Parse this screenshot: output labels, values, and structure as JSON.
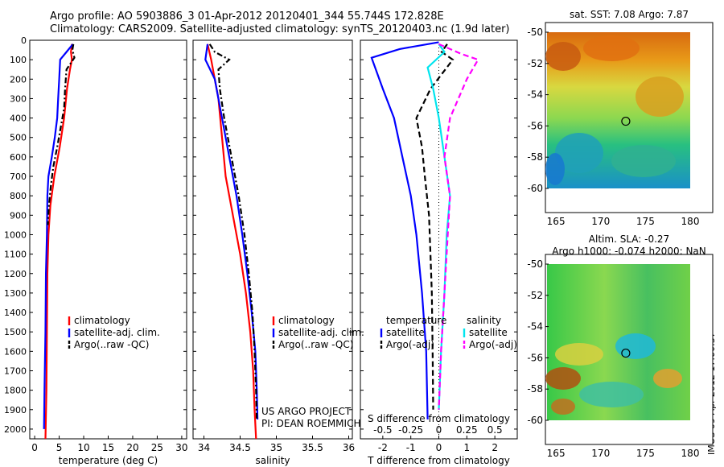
{
  "title": {
    "line1": "Argo profile: AO 5903886_3 01-Apr-2012 20120401_344 55.744S 172.828E",
    "line2": "Climatology: CARS2009. Satellite-adjusted climatology: synTS_20120403.nc (1.9d later)"
  },
  "depth_ticks": [
    0,
    100,
    200,
    300,
    400,
    500,
    600,
    700,
    800,
    900,
    1000,
    1100,
    1200,
    1300,
    1400,
    1500,
    1600,
    1700,
    1800,
    1900,
    2000
  ],
  "colors": {
    "climatology": "#ff0000",
    "satellite": "#0000ff",
    "argo": "#000000",
    "sal_satellite": "#00e5ee",
    "sal_argo": "#ff00ff"
  },
  "panels": {
    "temperature": {
      "xlabel": "temperature (deg C)",
      "ticks": [
        0,
        5,
        10,
        15,
        20,
        25,
        30
      ],
      "legend": [
        "climatology",
        "satellite-adj. clim.",
        "Argo(..raw -QC)"
      ]
    },
    "salinity": {
      "xlabel": "salinity",
      "ticks": [
        "34",
        "34.5",
        "35",
        "35.5",
        "36"
      ],
      "legend": [
        "climatology",
        "satellite-adj. clim.",
        "Argo(..raw -QC)"
      ],
      "note": [
        "US ARGO PROJECT",
        "PI: DEAN ROEMMICH"
      ]
    },
    "difference": {
      "xlabel": "T difference from climatology",
      "top_label": "S difference from climatology",
      "t_ticks": [
        "-2",
        "-1",
        "0",
        "1",
        "2"
      ],
      "s_ticks": [
        "-0.5",
        "-0.25",
        "0",
        "0.25",
        "0.5"
      ],
      "legend_temp_title": "temperature",
      "legend_sal_title": "salinity",
      "legend_temp": [
        "satellite",
        "Argo(-adj)"
      ],
      "legend_sal": [
        "satellite",
        "Argo(-adj)"
      ]
    }
  },
  "maps": {
    "sst_title": "sat. SST: 7.08 Argo: 7.87",
    "sla_title1": "Altim. SLA: -0.27",
    "sla_title2": "Argo h1000: -0.074 h2000: NaN",
    "lat_ticks": [
      "-50",
      "-52",
      "-54",
      "-56",
      "-58",
      "-60"
    ],
    "lon_ticks": [
      "165",
      "170",
      "175",
      "180"
    ],
    "float_lon": 172.8,
    "float_lat": -55.7
  },
  "side_label": "IMOS 09-Apr-2012 17:00:37",
  "chart_data": [
    {
      "type": "line",
      "name_key": "temperature",
      "xlabel": "temperature (deg C)",
      "ylabel": "",
      "xlim": [
        -1,
        31
      ],
      "ylim": [
        2050,
        0
      ],
      "series": [
        {
          "name": "climatology",
          "color": "#ff0000",
          "points": [
            [
              7.6,
              20
            ],
            [
              7.4,
              60
            ],
            [
              7.6,
              100
            ],
            [
              7.2,
              150
            ],
            [
              6.6,
              250
            ],
            [
              6.0,
              400
            ],
            [
              5.1,
              550
            ],
            [
              4.0,
              700
            ],
            [
              3.2,
              850
            ],
            [
              2.8,
              1000
            ],
            [
              2.6,
              1200
            ],
            [
              2.5,
              1500
            ],
            [
              2.4,
              1800
            ],
            [
              2.2,
              2050
            ]
          ]
        },
        {
          "name": "satellite-adj. clim.",
          "color": "#0000ff",
          "points": [
            [
              7.8,
              20
            ],
            [
              6.5,
              60
            ],
            [
              5.2,
              100
            ],
            [
              5.0,
              200
            ],
            [
              4.8,
              300
            ],
            [
              4.6,
              400
            ],
            [
              4.1,
              500
            ],
            [
              3.5,
              600
            ],
            [
              2.8,
              700
            ],
            [
              2.6,
              800
            ],
            [
              2.5,
              1000
            ],
            [
              2.3,
              1200
            ],
            [
              2.2,
              1500
            ],
            [
              2.0,
              1800
            ],
            [
              1.9,
              2000
            ]
          ]
        },
        {
          "name": "Argo(..raw -QC)",
          "color": "#000000",
          "points": [
            [
              7.9,
              20
            ],
            [
              7.7,
              50
            ],
            [
              8.1,
              90
            ],
            [
              6.5,
              150
            ],
            [
              6.2,
              250
            ],
            [
              6.0,
              350
            ],
            [
              5.3,
              450
            ],
            [
              4.6,
              550
            ],
            [
              3.8,
              650
            ],
            [
              3.3,
              750
            ],
            [
              2.9,
              850
            ],
            [
              2.7,
              950
            ]
          ]
        }
      ]
    },
    {
      "type": "line",
      "name_key": "salinity",
      "xlabel": "salinity",
      "ylabel": "",
      "xlim": [
        33.85,
        36.05
      ],
      "ylim": [
        2050,
        0
      ],
      "series": [
        {
          "name": "climatology",
          "color": "#ff0000",
          "points": [
            [
              34.05,
              20
            ],
            [
              34.1,
              100
            ],
            [
              34.15,
              200
            ],
            [
              34.2,
              300
            ],
            [
              34.25,
              500
            ],
            [
              34.3,
              700
            ],
            [
              34.4,
              900
            ],
            [
              34.5,
              1100
            ],
            [
              34.58,
              1300
            ],
            [
              34.64,
              1500
            ],
            [
              34.68,
              1700
            ],
            [
              34.7,
              1900
            ],
            [
              34.72,
              2050
            ]
          ]
        },
        {
          "name": "satellite-adj. clim.",
          "color": "#0000ff",
          "points": [
            [
              34.05,
              20
            ],
            [
              34.02,
              100
            ],
            [
              34.15,
              200
            ],
            [
              34.25,
              400
            ],
            [
              34.35,
              600
            ],
            [
              34.45,
              800
            ],
            [
              34.53,
              1000
            ],
            [
              34.6,
              1200
            ],
            [
              34.66,
              1400
            ],
            [
              34.71,
              1600
            ],
            [
              34.73,
              1800
            ],
            [
              34.74,
              1950
            ]
          ]
        },
        {
          "name": "Argo(..raw -QC)",
          "color": "#000000",
          "points": [
            [
              34.08,
              20
            ],
            [
              34.15,
              60
            ],
            [
              34.35,
              100
            ],
            [
              34.2,
              150
            ],
            [
              34.22,
              250
            ],
            [
              34.28,
              400
            ],
            [
              34.38,
              600
            ],
            [
              34.48,
              800
            ],
            [
              34.56,
              1000
            ],
            [
              34.62,
              1200
            ],
            [
              34.67,
              1400
            ],
            [
              34.7,
              1600
            ],
            [
              34.72,
              1800
            ],
            [
              34.73,
              1950
            ]
          ]
        }
      ]
    },
    {
      "type": "line",
      "name_key": "difference",
      "xlabel": "T difference from climatology",
      "top_label": "S difference from climatology",
      "xlim": [
        -2.8,
        2.8
      ],
      "top_xlim": [
        -0.7,
        0.7
      ],
      "ylim": [
        2050,
        0
      ],
      "series": [
        {
          "name": "temperature satellite",
          "color": "#0000ff",
          "axis": "T",
          "points": [
            [
              0,
              10
            ],
            [
              -1.4,
              45
            ],
            [
              -2.4,
              90
            ],
            [
              -2.0,
              250
            ],
            [
              -1.6,
              400
            ],
            [
              -1.3,
              600
            ],
            [
              -1.0,
              800
            ],
            [
              -0.8,
              1000
            ],
            [
              -0.6,
              1300
            ],
            [
              -0.45,
              1600
            ],
            [
              -0.4,
              1950
            ]
          ]
        },
        {
          "name": "temperature Argo(-adj)",
          "color": "#000000",
          "axis": "T",
          "points": [
            [
              0.3,
              20
            ],
            [
              0.1,
              60
            ],
            [
              0.5,
              100
            ],
            [
              -0.3,
              250
            ],
            [
              -0.8,
              400
            ],
            [
              -0.6,
              550
            ],
            [
              -0.5,
              700
            ],
            [
              -0.35,
              900
            ],
            [
              -0.3,
              1100
            ],
            [
              -0.25,
              1300
            ],
            [
              -0.22,
              1600
            ],
            [
              -0.2,
              1900
            ]
          ]
        },
        {
          "name": "salinity satellite",
          "color": "#00e5ee",
          "axis": "S",
          "points": [
            [
              0.0,
              20
            ],
            [
              0.05,
              60
            ],
            [
              -0.1,
              140
            ],
            [
              -0.05,
              250
            ],
            [
              0.0,
              400
            ],
            [
              0.05,
              600
            ],
            [
              0.1,
              800
            ],
            [
              0.07,
              1000
            ],
            [
              0.05,
              1300
            ],
            [
              0.02,
              1600
            ],
            [
              0.0,
              1900
            ]
          ]
        },
        {
          "name": "salinity Argo(-adj)",
          "color": "#ff00ff",
          "axis": "S",
          "points": [
            [
              0.0,
              20
            ],
            [
              0.2,
              70
            ],
            [
              0.35,
              100
            ],
            [
              0.25,
              200
            ],
            [
              0.1,
              400
            ],
            [
              0.05,
              600
            ],
            [
              0.1,
              800
            ],
            [
              0.08,
              1000
            ],
            [
              0.05,
              1300
            ],
            [
              0.02,
              1600
            ],
            [
              0.0,
              1900
            ]
          ]
        }
      ]
    }
  ]
}
